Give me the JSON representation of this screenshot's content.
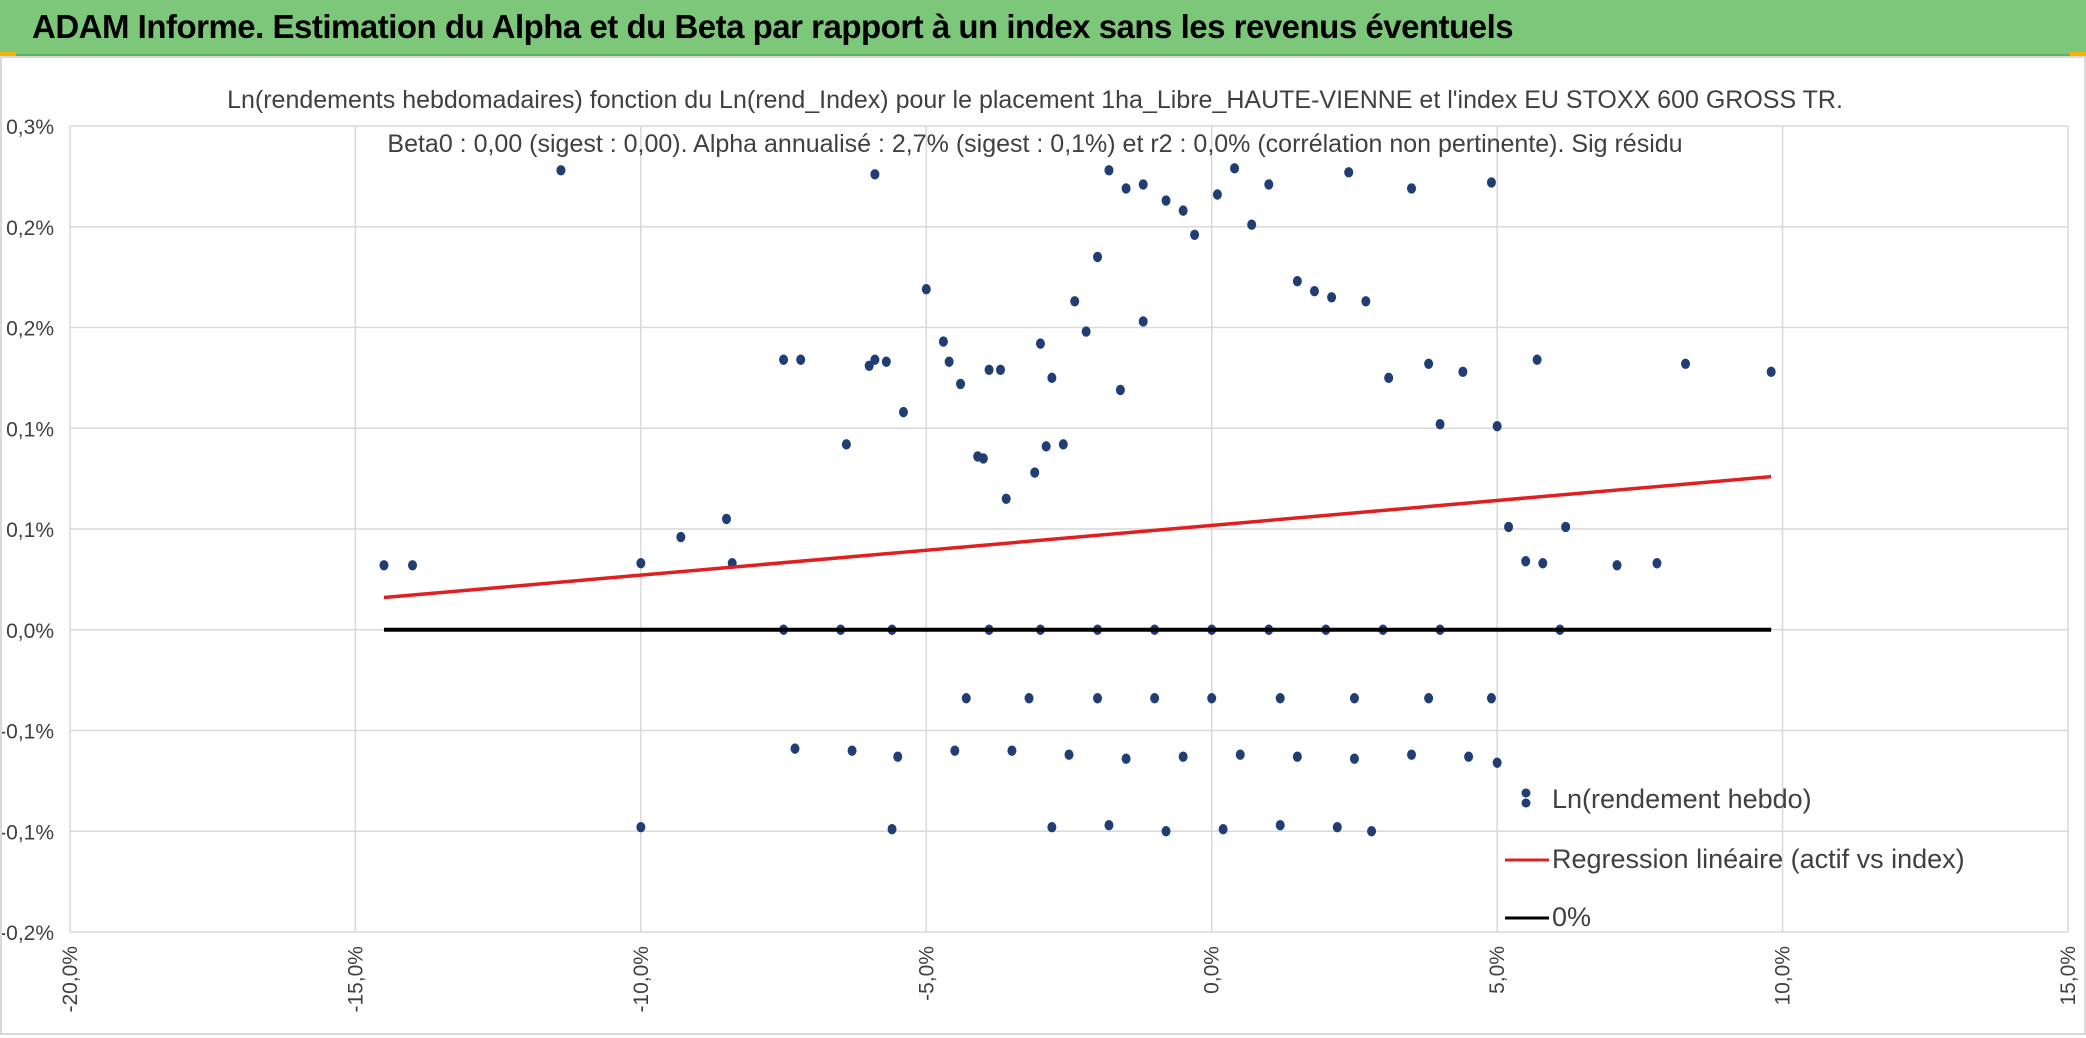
{
  "header": {
    "title": "ADAM Informe. Estimation du Alpha et du Beta par rapport à un index sans les revenus éventuels"
  },
  "colors": {
    "header_bg": "#7dc77a",
    "points": "#203e74",
    "regression": "#e02020",
    "zero_line": "#000000",
    "grid": "#d9d9d9"
  },
  "chart_data": {
    "type": "scatter",
    "title": "Ln(rendements hebdomadaires) fonction du Ln(rend_Index) pour le placement 1ha_Libre_HAUTE-VIENNE et l'index EU STOXX 600 GROSS TR.",
    "subtitle": "Beta0 : 0,00 (sigest : 0,00). Alpha annualisé : 2,7% (sigest : 0,1%) et r2 : 0,0% (corrélation non pertinente). Sig résidu",
    "xlim": [
      -0.2,
      0.15
    ],
    "ylim": [
      -0.0015,
      0.0025
    ],
    "x_ticks": [
      -0.2,
      -0.15,
      -0.1,
      -0.05,
      0.0,
      0.05,
      0.1,
      0.15
    ],
    "x_tick_labels": [
      "-20,0%",
      "-15,0%",
      "-10,0%",
      "-5,0%",
      "0,0%",
      "5,0%",
      "10,0%",
      "15,0%"
    ],
    "y_ticks": [
      -0.0015,
      -0.001,
      -0.0005,
      0.0,
      0.0005,
      0.001,
      0.0015,
      0.002,
      0.0025
    ],
    "y_tick_labels": [
      "-0,2%",
      "-0,1%",
      "-0,1%",
      "0,0%",
      "0,1%",
      "0,1%",
      "0,2%",
      "0,2%",
      "0,3%"
    ],
    "grid": true,
    "legend_position": "bottom-right",
    "series": [
      {
        "name": "Ln(rendement hebdo)",
        "kind": "scatter",
        "color": "#203e74",
        "points": [
          [
            -0.145,
            0.00032
          ],
          [
            -0.14,
            0.00032
          ],
          [
            -0.1,
            0.00033
          ],
          [
            -0.093,
            0.00046
          ],
          [
            -0.085,
            0.00055
          ],
          [
            -0.084,
            0.00033
          ],
          [
            -0.114,
            0.00228
          ],
          [
            -0.072,
            0.00134
          ],
          [
            -0.075,
            0.00134
          ],
          [
            -0.064,
            0.00092
          ],
          [
            -0.06,
            0.00131
          ],
          [
            -0.059,
            0.00134
          ],
          [
            -0.057,
            0.00133
          ],
          [
            -0.054,
            0.00108
          ],
          [
            -0.05,
            0.00169
          ],
          [
            -0.059,
            0.00226
          ],
          [
            -0.047,
            0.00143
          ],
          [
            -0.046,
            0.00133
          ],
          [
            -0.044,
            0.00122
          ],
          [
            -0.041,
            0.00086
          ],
          [
            -0.04,
            0.00085
          ],
          [
            -0.039,
            0.00129
          ],
          [
            -0.037,
            0.00129
          ],
          [
            -0.036,
            0.00065
          ],
          [
            -0.031,
            0.00078
          ],
          [
            -0.029,
            0.00091
          ],
          [
            -0.03,
            0.00142
          ],
          [
            -0.028,
            0.00125
          ],
          [
            -0.026,
            0.00092
          ],
          [
            -0.024,
            0.00163
          ],
          [
            -0.022,
            0.00148
          ],
          [
            -0.02,
            0.00185
          ],
          [
            -0.018,
            0.00228
          ],
          [
            -0.015,
            0.00219
          ],
          [
            -0.012,
            0.00221
          ],
          [
            -0.016,
            0.00119
          ],
          [
            -0.012,
            0.00153
          ],
          [
            -0.008,
            0.00213
          ],
          [
            -0.005,
            0.00208
          ],
          [
            -0.003,
            0.00196
          ],
          [
            0.001,
            0.00216
          ],
          [
            0.004,
            0.00229
          ],
          [
            0.007,
            0.00201
          ],
          [
            0.01,
            0.00221
          ],
          [
            0.015,
            0.00173
          ],
          [
            0.018,
            0.00168
          ],
          [
            0.021,
            0.00165
          ],
          [
            0.024,
            0.00227
          ],
          [
            0.027,
            0.00163
          ],
          [
            0.031,
            0.00125
          ],
          [
            0.035,
            0.00219
          ],
          [
            0.038,
            0.00132
          ],
          [
            0.04,
            0.00102
          ],
          [
            0.044,
            0.00128
          ],
          [
            0.049,
            0.00222
          ],
          [
            0.05,
            0.00101
          ],
          [
            0.052,
            0.00051
          ],
          [
            0.055,
            0.00034
          ],
          [
            0.058,
            0.00033
          ],
          [
            0.062,
            0.00051
          ],
          [
            0.057,
            0.00134
          ],
          [
            0.071,
            0.00032
          ],
          [
            0.078,
            0.00033
          ],
          [
            0.083,
            0.00132
          ],
          [
            0.098,
            0.00128
          ],
          [
            -0.075,
            0.0
          ],
          [
            -0.065,
            0.0
          ],
          [
            -0.056,
            0.0
          ],
          [
            -0.039,
            0.0
          ],
          [
            -0.03,
            0.0
          ],
          [
            -0.02,
            0.0
          ],
          [
            -0.01,
            0.0
          ],
          [
            0.0,
            0.0
          ],
          [
            0.01,
            0.0
          ],
          [
            0.02,
            0.0
          ],
          [
            0.03,
            0.0
          ],
          [
            0.04,
            0.0
          ],
          [
            0.061,
            0.0
          ],
          [
            -0.043,
            -0.00034
          ],
          [
            -0.032,
            -0.00034
          ],
          [
            -0.02,
            -0.00034
          ],
          [
            -0.01,
            -0.00034
          ],
          [
            0.0,
            -0.00034
          ],
          [
            0.012,
            -0.00034
          ],
          [
            0.025,
            -0.00034
          ],
          [
            0.038,
            -0.00034
          ],
          [
            0.049,
            -0.00034
          ],
          [
            -0.073,
            -0.00059
          ],
          [
            -0.063,
            -0.0006
          ],
          [
            -0.055,
            -0.00063
          ],
          [
            -0.045,
            -0.0006
          ],
          [
            -0.035,
            -0.0006
          ],
          [
            -0.025,
            -0.00062
          ],
          [
            -0.015,
            -0.00064
          ],
          [
            -0.005,
            -0.00063
          ],
          [
            0.005,
            -0.00062
          ],
          [
            0.015,
            -0.00063
          ],
          [
            0.025,
            -0.00064
          ],
          [
            0.035,
            -0.00062
          ],
          [
            0.045,
            -0.00063
          ],
          [
            0.05,
            -0.00066
          ],
          [
            -0.1,
            -0.00098
          ],
          [
            -0.056,
            -0.00099
          ],
          [
            -0.028,
            -0.00098
          ],
          [
            -0.018,
            -0.00097
          ],
          [
            -0.008,
            -0.001
          ],
          [
            0.002,
            -0.00099
          ],
          [
            0.012,
            -0.00097
          ],
          [
            0.022,
            -0.00098
          ],
          [
            0.028,
            -0.001
          ]
        ]
      },
      {
        "name": "Regression linéaire (actif vs index)",
        "kind": "line",
        "color": "#e02020",
        "points": [
          [
            -0.145,
            0.00016
          ],
          [
            0.098,
            0.00076
          ]
        ]
      },
      {
        "name": "0%",
        "kind": "line",
        "color": "#000000",
        "points": [
          [
            -0.145,
            0.0
          ],
          [
            0.098,
            0.0
          ]
        ]
      }
    ]
  }
}
